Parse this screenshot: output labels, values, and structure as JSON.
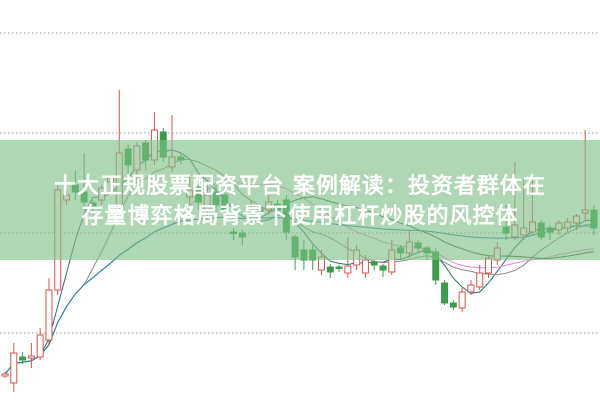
{
  "banner": {
    "line1": "十大正规股票配资平台 案例解读：投资者群体在",
    "line2": "存量博弈格局背景下使用杠杆炒股的风控体"
  },
  "colors": {
    "up": "#d9534f",
    "down": "#3a9d4a",
    "grid": "#9a9a9a",
    "banner": "#7dbe87",
    "ma": [
      "#2f6f6f",
      "#8a8a8a",
      "#e58ad6",
      "#3a6d3a",
      "#2a8aa8"
    ]
  },
  "chart_data": {
    "type": "candlestick",
    "title": "",
    "grid": true,
    "ohlc_fields": [
      "open",
      "high",
      "low",
      "close"
    ],
    "ma_periods": [
      5,
      10,
      20,
      30,
      60
    ],
    "candles": [
      [
        24,
        28,
        22,
        26
      ],
      [
        17,
        57,
        8,
        47
      ],
      [
        43,
        48,
        36,
        40
      ],
      [
        42,
        57,
        32,
        44
      ],
      [
        43,
        72,
        40,
        65
      ],
      [
        60,
        122,
        55,
        110
      ],
      [
        110,
        215,
        105,
        210
      ],
      [
        200,
        210,
        195,
        205
      ],
      [
        215,
        230,
        200,
        208
      ],
      [
        208,
        247,
        190,
        198
      ],
      [
        197,
        200,
        185,
        192
      ],
      [
        200,
        215,
        195,
        212
      ],
      [
        218,
        225,
        210,
        222
      ],
      [
        193,
        310,
        190,
        247
      ],
      [
        251,
        255,
        220,
        235
      ],
      [
        230,
        258,
        220,
        254
      ],
      [
        257,
        260,
        230,
        240
      ],
      [
        240,
        288,
        235,
        270
      ],
      [
        268,
        272,
        238,
        243
      ],
      [
        233,
        285,
        228,
        243
      ],
      [
        243,
        247,
        236,
        240
      ],
      [
        203,
        225,
        195,
        210
      ],
      [
        215,
        225,
        190,
        198
      ],
      [
        190,
        215,
        180,
        205
      ],
      [
        208,
        215,
        185,
        195
      ],
      [
        205,
        210,
        180,
        190
      ],
      [
        168,
        172,
        160,
        167
      ],
      [
        167,
        170,
        155,
        163
      ],
      [
        195,
        200,
        175,
        185
      ],
      [
        192,
        196,
        180,
        188
      ],
      [
        190,
        205,
        185,
        198
      ],
      [
        196,
        200,
        185,
        190
      ],
      [
        200,
        205,
        160,
        168
      ],
      [
        163,
        165,
        130,
        143
      ],
      [
        150,
        160,
        130,
        140
      ],
      [
        150,
        155,
        130,
        140
      ],
      [
        130,
        150,
        125,
        143
      ],
      [
        133,
        136,
        122,
        128
      ],
      [
        133,
        135,
        128,
        132
      ],
      [
        127,
        163,
        122,
        134
      ],
      [
        135,
        155,
        130,
        150
      ],
      [
        127,
        145,
        122,
        140
      ],
      [
        138,
        140,
        130,
        135
      ],
      [
        134,
        136,
        123,
        130
      ],
      [
        128,
        160,
        125,
        150
      ],
      [
        152,
        155,
        140,
        147
      ],
      [
        147,
        170,
        142,
        158
      ],
      [
        157,
        160,
        148,
        152
      ],
      [
        152,
        154,
        140,
        147
      ],
      [
        148,
        152,
        115,
        120
      ],
      [
        117,
        120,
        95,
        97
      ],
      [
        97,
        100,
        90,
        93
      ],
      [
        92,
        112,
        88,
        108
      ],
      [
        108,
        120,
        105,
        115
      ],
      [
        113,
        135,
        110,
        127
      ],
      [
        127,
        145,
        122,
        142
      ],
      [
        140,
        158,
        135,
        152
      ],
      [
        173,
        195,
        160,
        167
      ],
      [
        163,
        238,
        160,
        175
      ],
      [
        165,
        220,
        160,
        172
      ],
      [
        168,
        222,
        165,
        178
      ],
      [
        177,
        180,
        160,
        163
      ],
      [
        172,
        175,
        160,
        168
      ],
      [
        170,
        180,
        165,
        177
      ],
      [
        172,
        182,
        168,
        178
      ],
      [
        177,
        186,
        170,
        184
      ],
      [
        187,
        270,
        180,
        190
      ],
      [
        190,
        195,
        165,
        172
      ]
    ]
  }
}
